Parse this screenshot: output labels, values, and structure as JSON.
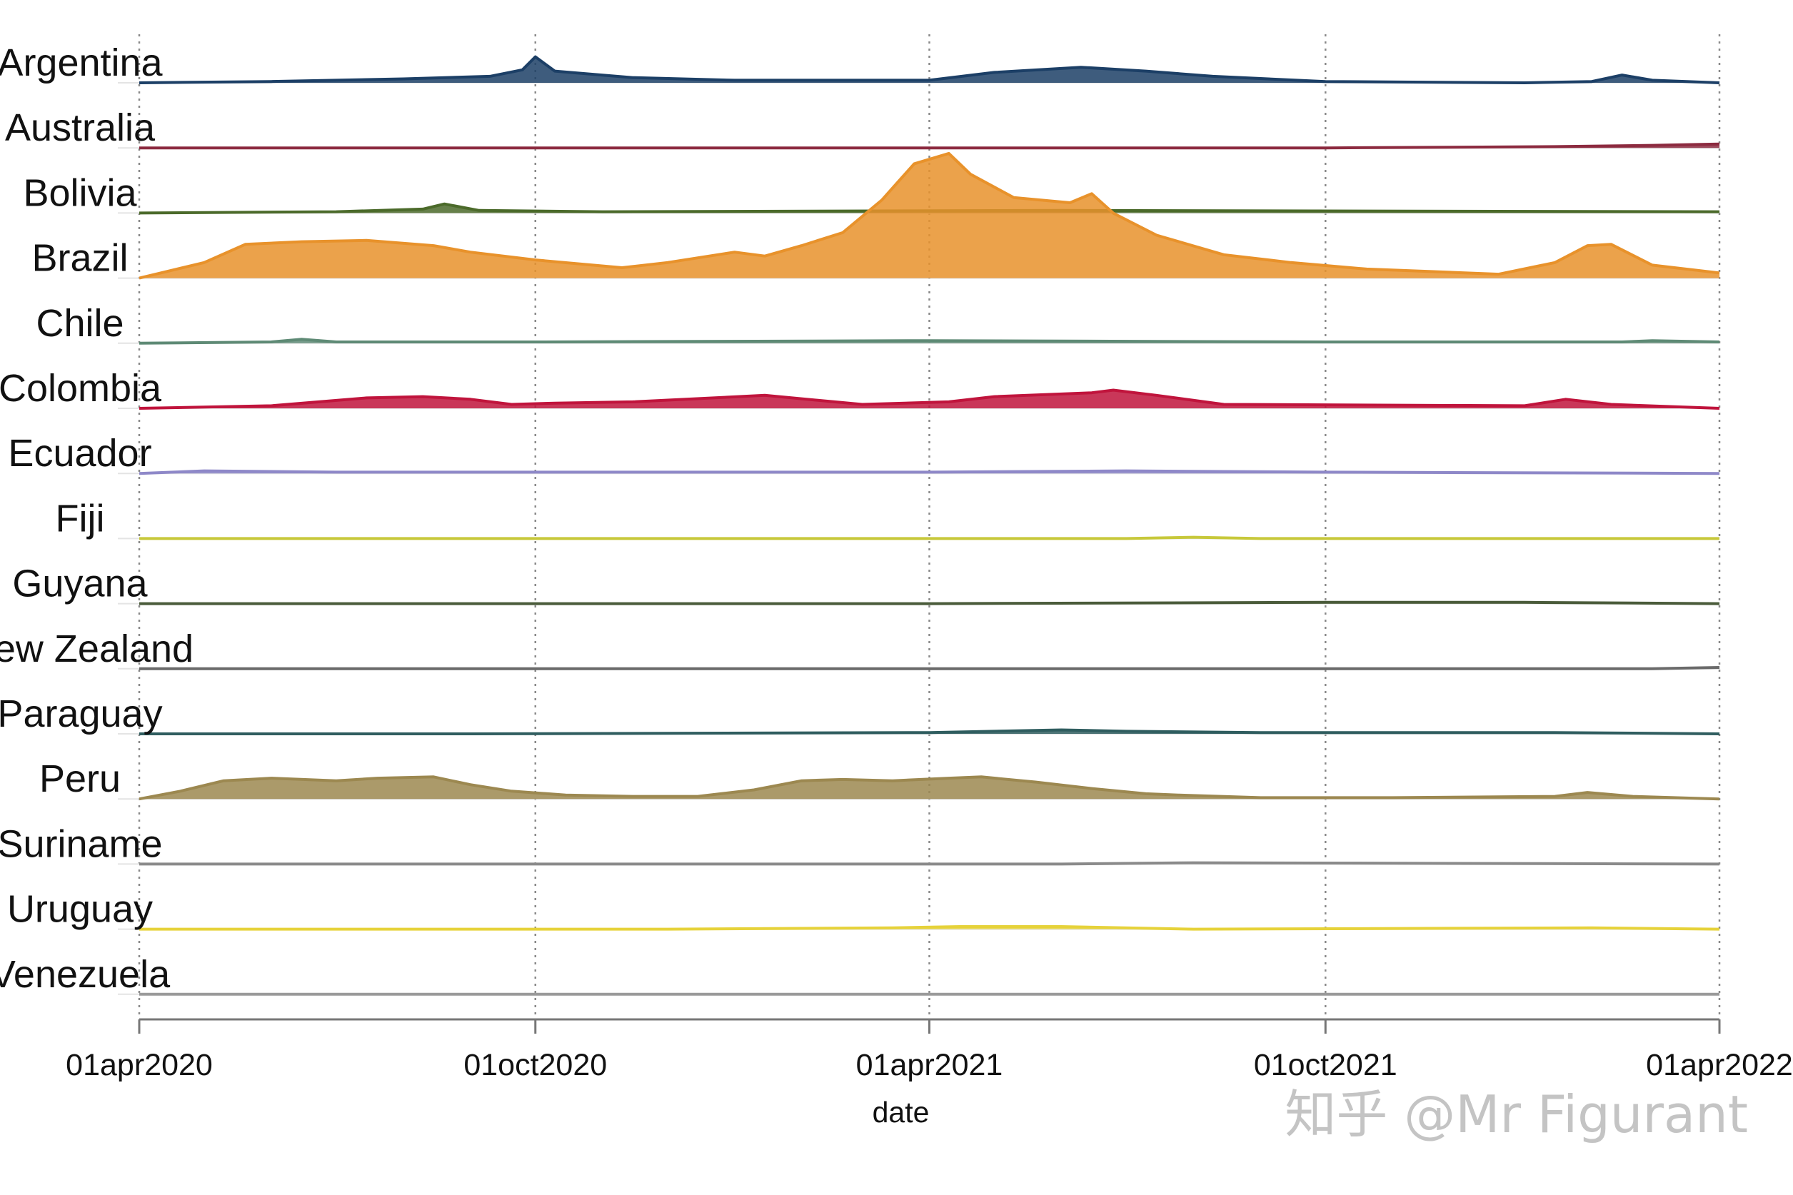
{
  "chart_data": {
    "type": "area",
    "subtype": "ridgeline",
    "title": "",
    "xlabel": "date",
    "ylabel": "",
    "x_range": [
      "2020-04-01",
      "2022-04-01"
    ],
    "x_ticks": [
      {
        "date": "2020-04-01",
        "label": "01apr2020"
      },
      {
        "date": "2020-10-01",
        "label": "01oct2020"
      },
      {
        "date": "2021-04-01",
        "label": "01apr2021"
      },
      {
        "date": "2021-10-01",
        "label": "01oct2021"
      },
      {
        "date": "2022-04-01",
        "label": "01apr2022"
      }
    ],
    "grid": "vertical dotted at ticks",
    "y_max": 100,
    "series": [
      {
        "name": "Argentina",
        "color": "#1c3f66",
        "x": [
          "2020-04-01",
          "2020-06-01",
          "2020-08-01",
          "2020-09-10",
          "2020-09-25",
          "2020-10-01",
          "2020-10-10",
          "2020-11-15",
          "2021-01-01",
          "2021-04-01",
          "2021-05-01",
          "2021-06-10",
          "2021-07-10",
          "2021-08-10",
          "2021-10-01",
          "2022-01-01",
          "2022-02-01",
          "2022-02-15",
          "2022-03-01",
          "2022-04-01"
        ],
        "values": [
          0,
          1,
          3,
          5,
          10,
          20,
          9,
          4,
          2,
          2,
          8,
          12,
          9,
          5,
          1,
          0,
          1,
          6,
          2,
          0
        ]
      },
      {
        "name": "Australia",
        "color": "#8c2a3f",
        "x": [
          "2020-04-01",
          "2021-10-01",
          "2022-01-15",
          "2022-03-01",
          "2022-04-01"
        ],
        "values": [
          0,
          0,
          1,
          2,
          3
        ]
      },
      {
        "name": "Bolivia",
        "color": "#4b6a2a",
        "x": [
          "2020-04-01",
          "2020-07-01",
          "2020-08-10",
          "2020-08-20",
          "2020-09-05",
          "2020-11-01",
          "2021-06-01",
          "2022-04-01"
        ],
        "values": [
          0,
          1,
          3,
          7,
          2,
          1,
          2,
          1
        ]
      },
      {
        "name": "Brazil",
        "color": "#e8922b",
        "x": [
          "2020-04-01",
          "2020-05-01",
          "2020-05-20",
          "2020-06-15",
          "2020-07-15",
          "2020-08-15",
          "2020-09-01",
          "2020-10-01",
          "2020-11-10",
          "2020-12-01",
          "2021-01-01",
          "2021-01-15",
          "2021-02-01",
          "2021-02-20",
          "2021-03-10",
          "2021-03-25",
          "2021-04-10",
          "2021-04-20",
          "2021-05-10",
          "2021-06-05",
          "2021-06-15",
          "2021-06-25",
          "2021-07-15",
          "2021-08-15",
          "2021-09-15",
          "2021-10-20",
          "2021-11-20",
          "2021-12-20",
          "2022-01-15",
          "2022-01-30",
          "2022-02-10",
          "2022-03-01",
          "2022-04-01"
        ],
        "values": [
          0,
          12,
          26,
          28,
          29,
          25,
          20,
          14,
          8,
          12,
          20,
          17,
          25,
          35,
          60,
          88,
          96,
          80,
          62,
          58,
          65,
          50,
          33,
          18,
          12,
          7,
          5,
          3,
          12,
          25,
          26,
          10,
          4
        ]
      },
      {
        "name": "Chile",
        "color": "#5e8a75",
        "x": [
          "2020-04-01",
          "2020-06-01",
          "2020-06-15",
          "2020-07-01",
          "2020-10-01",
          "2021-04-01",
          "2021-10-01",
          "2022-02-15",
          "2022-03-01",
          "2022-04-01"
        ],
        "values": [
          0,
          1,
          3,
          1,
          1,
          2,
          1,
          1,
          2,
          1
        ]
      },
      {
        "name": "Colombia",
        "color": "#c0143c",
        "x": [
          "2020-04-01",
          "2020-06-01",
          "2020-07-15",
          "2020-08-10",
          "2020-09-01",
          "2020-09-20",
          "2020-10-10",
          "2020-11-15",
          "2021-01-15",
          "2021-03-01",
          "2021-04-10",
          "2021-05-01",
          "2021-06-15",
          "2021-06-25",
          "2021-07-15",
          "2021-08-15",
          "2022-01-01",
          "2022-01-20",
          "2022-02-10",
          "2022-04-01"
        ],
        "values": [
          0,
          2,
          8,
          9,
          7,
          3,
          4,
          5,
          10,
          3,
          5,
          9,
          12,
          14,
          10,
          3,
          2,
          7,
          3,
          0
        ]
      },
      {
        "name": "Ecuador",
        "color": "#8e88c8",
        "x": [
          "2020-04-01",
          "2020-05-01",
          "2020-07-01",
          "2020-10-01",
          "2021-04-01",
          "2021-07-01",
          "2021-10-01",
          "2022-04-01"
        ],
        "values": [
          0,
          2,
          1,
          1,
          1,
          2,
          1,
          0
        ]
      },
      {
        "name": "Fiji",
        "color": "#c7c83a",
        "x": [
          "2020-04-01",
          "2021-07-01",
          "2021-08-01",
          "2021-09-01",
          "2022-04-01"
        ],
        "values": [
          0,
          0,
          1,
          0,
          0
        ]
      },
      {
        "name": "Guyana",
        "color": "#4a5b3a",
        "x": [
          "2020-04-01",
          "2021-04-01",
          "2021-10-01",
          "2022-01-01",
          "2022-04-01"
        ],
        "values": [
          0,
          0,
          1,
          1,
          0
        ]
      },
      {
        "name": "New Zealand",
        "color": "#6a6a6a",
        "x": [
          "2020-04-01",
          "2022-03-01",
          "2022-04-01"
        ],
        "values": [
          0,
          0,
          1
        ]
      },
      {
        "name": "Paraguay",
        "color": "#2f5d5f",
        "x": [
          "2020-04-01",
          "2020-09-01",
          "2021-04-01",
          "2021-06-01",
          "2021-07-01",
          "2021-09-01",
          "2022-01-15",
          "2022-04-01"
        ],
        "values": [
          0,
          0,
          1,
          3,
          2,
          1,
          1,
          0
        ]
      },
      {
        "name": "Peru",
        "color": "#9c8850",
        "x": [
          "2020-04-01",
          "2020-04-20",
          "2020-05-10",
          "2020-06-01",
          "2020-07-01",
          "2020-07-20",
          "2020-08-15",
          "2020-09-01",
          "2020-09-20",
          "2020-10-15",
          "2020-11-15",
          "2020-12-15",
          "2021-01-10",
          "2021-02-01",
          "2021-02-20",
          "2021-03-15",
          "2021-04-10",
          "2021-04-25",
          "2021-05-20",
          "2021-06-15",
          "2021-07-10",
          "2021-07-25",
          "2021-09-01",
          "2021-11-01",
          "2022-01-15",
          "2022-01-30",
          "2022-02-20",
          "2022-04-01"
        ],
        "values": [
          0,
          6,
          14,
          16,
          14,
          16,
          17,
          11,
          6,
          3,
          2,
          2,
          7,
          14,
          15,
          14,
          16,
          17,
          13,
          8,
          4,
          3,
          1,
          1,
          2,
          5,
          2,
          0
        ]
      },
      {
        "name": "Suriname",
        "color": "#8a8a8a",
        "x": [
          "2020-04-01",
          "2021-06-01",
          "2021-08-01",
          "2022-04-01"
        ],
        "values": [
          0,
          0,
          1,
          0
        ]
      },
      {
        "name": "Uruguay",
        "color": "#e6d23a",
        "x": [
          "2020-04-01",
          "2020-12-01",
          "2021-03-15",
          "2021-04-15",
          "2021-06-01",
          "2021-08-01",
          "2022-02-01",
          "2022-04-01"
        ],
        "values": [
          0,
          0,
          1,
          2,
          2,
          0,
          1,
          0
        ]
      },
      {
        "name": "Venezuela",
        "color": "#9a9a9a",
        "x": [
          "2020-04-01",
          "2022-04-01"
        ],
        "values": [
          0,
          0
        ]
      }
    ]
  },
  "watermark": "知乎 @Mr Figurant"
}
